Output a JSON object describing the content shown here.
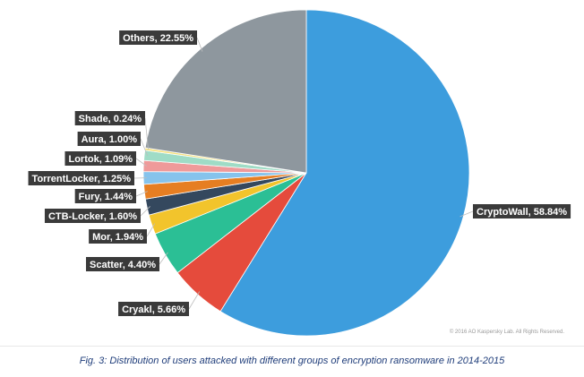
{
  "chart_data": {
    "type": "pie",
    "start": "top",
    "direction": "clockwise",
    "slices": [
      {
        "label": "CryptoWall",
        "value": 58.84,
        "display": "CryptoWall, 58.84%",
        "color": "#3d9ddd"
      },
      {
        "label": "Cryakl",
        "value": 5.66,
        "display": "Cryakl, 5.66%",
        "color": "#e54b3c"
      },
      {
        "label": "Scatter",
        "value": 4.4,
        "display": "Scatter, 4.40%",
        "color": "#2bbf95"
      },
      {
        "label": "Mor",
        "value": 1.94,
        "display": "Mor, 1.94%",
        "color": "#f2c42c"
      },
      {
        "label": "CTB-Locker",
        "value": 1.6,
        "display": "CTB-Locker, 1.60%",
        "color": "#34485e"
      },
      {
        "label": "Fury",
        "value": 1.44,
        "display": "Fury, 1.44%",
        "color": "#e67e22"
      },
      {
        "label": "TorrentLocker",
        "value": 1.25,
        "display": "TorrentLocker, 1.25%",
        "color": "#86c3ec"
      },
      {
        "label": "Lortok",
        "value": 1.09,
        "display": "Lortok, 1.09%",
        "color": "#ef9a9a"
      },
      {
        "label": "Aura",
        "value": 1.0,
        "display": "Aura, 1.00%",
        "color": "#9fdcc6"
      },
      {
        "label": "Shade",
        "value": 0.24,
        "display": "Shade, 0.24%",
        "color": "#f5e07a"
      },
      {
        "label": "Others",
        "value": 22.55,
        "display": "Others, 22.55%",
        "color": "#8e979e"
      }
    ]
  },
  "copyright": "© 2016 AO Kaspersky Lab. All Rights Reserved.",
  "caption": "Fig. 3: Distribution of users attacked with different groups of encryption ransomware in 2014-2015"
}
